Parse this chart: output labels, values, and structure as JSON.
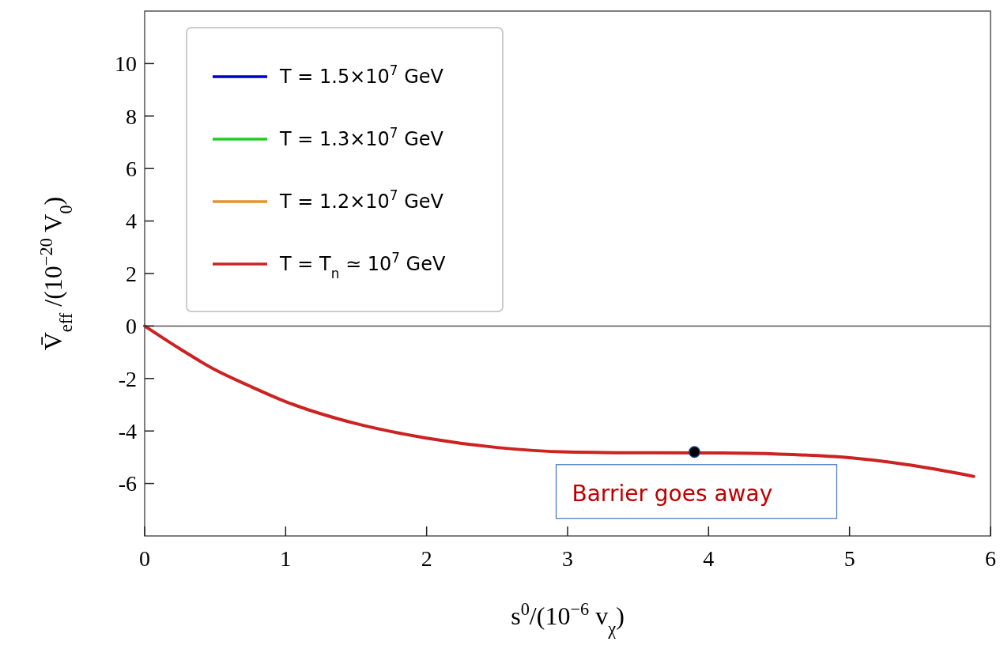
{
  "chart_data": {
    "type": "line",
    "xlabel": "s$^{0}$/(10$^{−6}$ v$_{χ}$)",
    "ylabel": "V̄$_{eff}$ /(10$^{−20}$ V$_{0}$)",
    "x": [
      0,
      0.25,
      0.5,
      0.75,
      1,
      1.5,
      2,
      2.5,
      3,
      3.5,
      4.1,
      4.5,
      5,
      5.3,
      5.6,
      5.88
    ],
    "series": [
      {
        "name": "T = 1.5×10$^{7}$ GeV",
        "color": "#0000cc",
        "values": [
          null,
          null,
          null,
          null,
          null,
          null,
          null,
          null,
          null,
          null,
          null,
          null,
          null,
          null,
          null,
          null
        ]
      },
      {
        "name": "T = 1.3×10$^{7}$ GeV",
        "color": "#22cc22",
        "values": [
          null,
          null,
          null,
          null,
          null,
          null,
          null,
          null,
          null,
          null,
          null,
          null,
          null,
          null,
          null,
          null
        ]
      },
      {
        "name": "T = 1.2×10$^{7}$ GeV",
        "color": "#e8902a",
        "values": [
          null,
          null,
          null,
          null,
          null,
          null,
          null,
          null,
          null,
          null,
          null,
          null,
          null,
          null,
          null,
          null
        ]
      },
      {
        "name": "T = T$_{n}$ ≃ 10$^{7}$ GeV",
        "color": "#cc2222",
        "values": [
          0,
          -0.87,
          -1.67,
          -2.3,
          -2.88,
          -3.72,
          -4.27,
          -4.63,
          -4.8,
          -4.83,
          -4.84,
          -4.88,
          -5.02,
          -5.2,
          -5.45,
          -5.73
        ]
      },
      {
        "type": "scatter",
        "marker": "circle",
        "color": "#000000",
        "x": [
          3.9
        ],
        "values": [
          -4.8
        ]
      }
    ],
    "xlim": [
      0,
      6
    ],
    "xticks": [
      0,
      1,
      2,
      3,
      4,
      5,
      6
    ],
    "ylim": [
      -8,
      12
    ],
    "yticks": [
      -6,
      -4,
      -2,
      0,
      2,
      4,
      6,
      8,
      10
    ],
    "ref_lines": [
      {
        "axis": "y",
        "value": 0,
        "color": "#555555"
      }
    ],
    "annotations": [
      {
        "text": "Barrier goes away",
        "x": 3.9,
        "y": -4.8
      }
    ],
    "legend": "top left"
  }
}
